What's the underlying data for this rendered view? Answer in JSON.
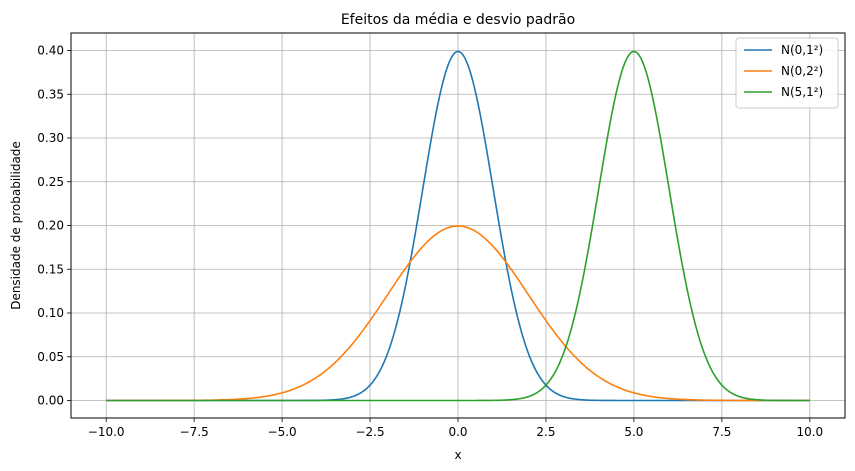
{
  "chart_data": {
    "type": "line",
    "title": "Efeitos da média e desvio padrão",
    "xlabel": "x",
    "ylabel": "Densidade de probabilidade",
    "xlim": [
      -11,
      11
    ],
    "ylim": [
      -0.02,
      0.42
    ],
    "xticks": [
      -10.0,
      -7.5,
      -5.0,
      -2.5,
      0.0,
      2.5,
      5.0,
      7.5,
      10.0
    ],
    "xtick_labels": [
      "−10.0",
      "−7.5",
      "−5.0",
      "−2.5",
      "0.0",
      "2.5",
      "5.0",
      "7.5",
      "10.0"
    ],
    "yticks": [
      0.0,
      0.05,
      0.1,
      0.15,
      0.2,
      0.25,
      0.3,
      0.35,
      0.4
    ],
    "ytick_labels": [
      "0.00",
      "0.05",
      "0.10",
      "0.15",
      "0.20",
      "0.25",
      "0.30",
      "0.35",
      "0.40"
    ],
    "grid": true,
    "legend_position": "top-right",
    "x_range": [
      -10,
      10
    ],
    "series": [
      {
        "name": "N(0,1²)",
        "mean": 0,
        "std": 1,
        "color": "#1f77b4"
      },
      {
        "name": "N(0,2²)",
        "mean": 0,
        "std": 2,
        "color": "#ff7f0e"
      },
      {
        "name": "N(5,1²)",
        "mean": 5,
        "std": 1,
        "color": "#2ca02c"
      }
    ]
  }
}
